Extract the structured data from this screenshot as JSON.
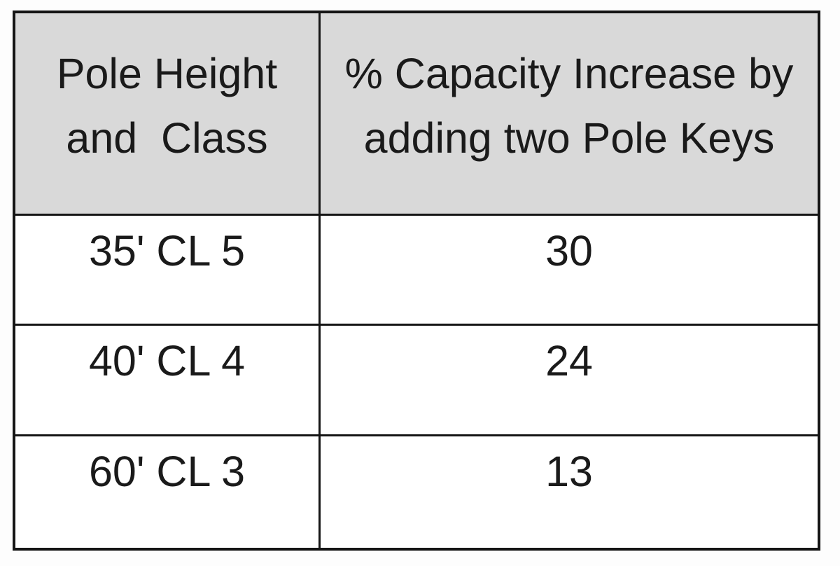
{
  "chart_data": {
    "type": "table",
    "title": "",
    "columns": [
      "Pole Height and Class",
      "% Capacity Increase by adding two Pole Keys"
    ],
    "rows": [
      [
        "35' CL 5",
        30
      ],
      [
        "40' CL 4",
        24
      ],
      [
        "60' CL 3",
        13
      ]
    ]
  },
  "header": {
    "col1_line1": "Pole Height",
    "col1_line2": "and  Class",
    "col2_line1": "% Capacity Increase by",
    "col2_line2": "adding two Pole Keys"
  },
  "rows": [
    {
      "pole": "35' CL 5",
      "increase": "30"
    },
    {
      "pole": "40' CL 4",
      "increase": "24"
    },
    {
      "pole": "60' CL 3",
      "increase": "13"
    }
  ],
  "colors": {
    "header_bg": "#d9d9d9",
    "border": "#151515",
    "text": "#1a1a1a",
    "page_bg": "#fdfdfd"
  }
}
